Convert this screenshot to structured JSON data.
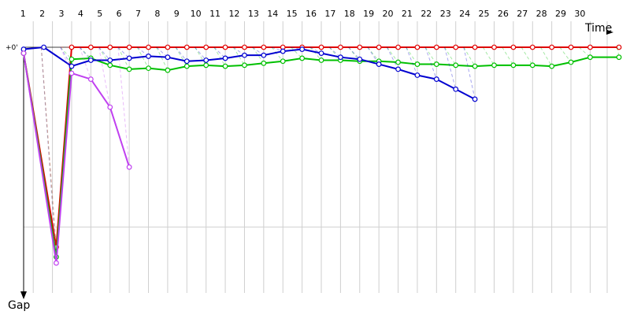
{
  "chart_data": {
    "type": "line",
    "xlabel": "Time",
    "ylabel": "Gap",
    "zero_label": "+0'",
    "x_ticks": [
      1,
      2,
      3,
      4,
      5,
      6,
      7,
      8,
      9,
      10,
      11,
      12,
      13,
      14,
      15,
      16,
      17,
      18,
      19,
      20,
      21,
      22,
      23,
      24,
      25,
      26,
      27,
      28,
      29,
      30
    ],
    "xlim": [
      0,
      31
    ],
    "ylim": [
      0,
      12.3
    ],
    "y_gridline": 9.0,
    "grid": true,
    "series": [
      {
        "color": "#e00000",
        "x": [
          0,
          1.7,
          2.5,
          3.5,
          4.5,
          5.5,
          6.5,
          7.5,
          8.5,
          9.5,
          10.5,
          11.5,
          12.5,
          13.5,
          14.5,
          15.5,
          16.5,
          17.5,
          18.5,
          19.5,
          20.5,
          21.5,
          22.5,
          23.5,
          24.5,
          25.5,
          26.5,
          27.5,
          28.5,
          29.5,
          31
        ],
        "y": [
          0.3,
          10.0,
          0.0,
          0.0,
          0.0,
          0.0,
          0.0,
          0.0,
          0.0,
          0.0,
          0.0,
          0.0,
          0.0,
          0.0,
          0.0,
          0.0,
          0.0,
          0.0,
          0.0,
          0.0,
          0.0,
          0.0,
          0.0,
          0.0,
          0.0,
          0.0,
          0.0,
          0.0,
          0.0,
          0.0,
          0.0
        ]
      },
      {
        "color": "#00c000",
        "x": [
          0,
          1.7,
          2.5,
          3.5,
          4.5,
          5.5,
          6.5,
          7.5,
          8.5,
          9.5,
          10.5,
          11.5,
          12.5,
          13.5,
          14.5,
          15.5,
          16.5,
          17.5,
          18.5,
          19.5,
          20.5,
          21.5,
          22.5,
          23.5,
          24.5,
          25.5,
          26.5,
          27.5,
          28.5,
          29.5,
          31
        ],
        "y": [
          0.3,
          10.5,
          0.6,
          0.55,
          0.9,
          1.1,
          1.05,
          1.15,
          0.95,
          0.9,
          0.95,
          0.9,
          0.8,
          0.7,
          0.55,
          0.65,
          0.65,
          0.7,
          0.7,
          0.75,
          0.85,
          0.85,
          0.9,
          0.95,
          0.9,
          0.9,
          0.9,
          0.95,
          0.75,
          0.5,
          0.5
        ]
      },
      {
        "color": "#0000d0",
        "x": [
          0,
          1.05,
          2.5,
          3.5,
          4.5,
          5.5,
          6.5,
          7.5,
          8.5,
          9.5,
          10.5,
          11.5,
          12.5,
          13.5,
          14.5,
          15.5,
          16.5,
          17.5,
          18.5,
          19.5,
          20.5,
          21.5,
          22.5,
          23.5
        ],
        "y": [
          0.1,
          0.0,
          0.95,
          0.65,
          0.65,
          0.55,
          0.45,
          0.5,
          0.7,
          0.65,
          0.55,
          0.4,
          0.4,
          0.2,
          0.1,
          0.3,
          0.5,
          0.6,
          0.85,
          1.1,
          1.4,
          1.6,
          2.1,
          2.6
        ]
      },
      {
        "color": "#c040f0",
        "x": [
          0,
          1.7,
          2.5,
          3.5,
          4.5,
          5.5
        ],
        "y": [
          0.3,
          10.8,
          1.3,
          1.6,
          3.0,
          6.0
        ]
      }
    ]
  }
}
